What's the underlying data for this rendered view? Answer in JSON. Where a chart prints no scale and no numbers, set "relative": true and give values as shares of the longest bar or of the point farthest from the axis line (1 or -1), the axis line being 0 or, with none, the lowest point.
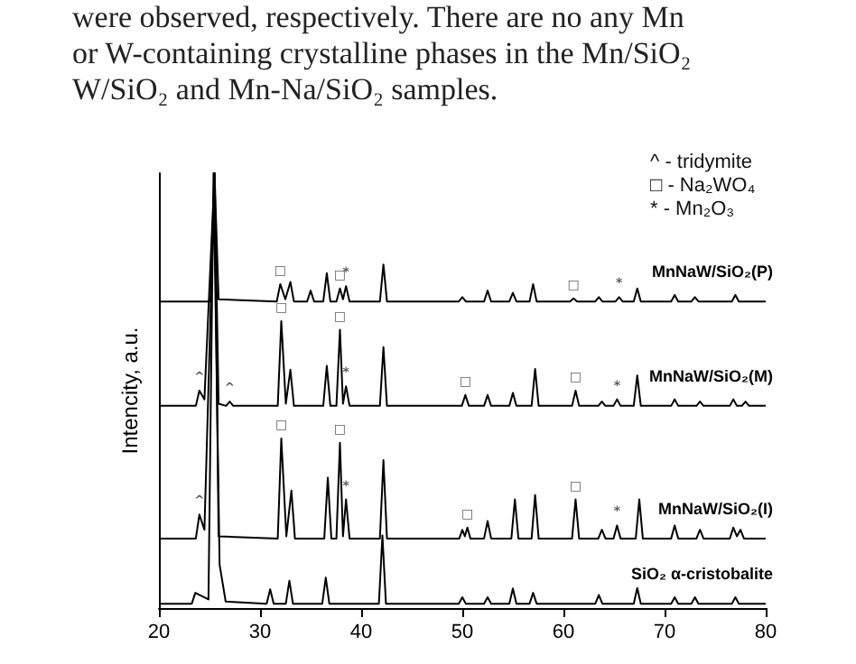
{
  "chart_data": {
    "type": "line",
    "relative": true,
    "ylabel": "Intencity, a.u.",
    "xlim": [
      20,
      80
    ],
    "xticks": [
      20,
      30,
      40,
      50,
      60,
      70,
      80
    ],
    "grid": false,
    "legend": false,
    "series": [
      {
        "name": "MnNaW/SiO₂(P)",
        "color": "#000000",
        "x": [
          20,
          25.1,
          25.5,
          25.9,
          31.65,
          32,
          32.5,
          33,
          33.35,
          34.65,
          35,
          35.35,
          36.25,
          36.6,
          36.95,
          37.55,
          37.9,
          38.2,
          38.5,
          38.85,
          41.85,
          42.2,
          42.55,
          49.65,
          50,
          50.35,
          52.15,
          52.5,
          52.85,
          54.65,
          55,
          55.35,
          56.65,
          57,
          57.35,
          60.65,
          61,
          61.35,
          63.15,
          63.5,
          63.85,
          65.15,
          65.5,
          65.85,
          66.95,
          67.3,
          67.65,
          70.65,
          71,
          71.35,
          72.65,
          73,
          73.35,
          76.65,
          77,
          77.35,
          80
        ],
        "values": [
          0.705,
          0.705,
          1,
          0.71,
          0.705,
          0.745,
          0.71,
          0.75,
          0.705,
          0.705,
          0.73,
          0.705,
          0.705,
          0.77,
          0.705,
          0.705,
          0.735,
          0.71,
          0.74,
          0.705,
          0.705,
          0.79,
          0.705,
          0.705,
          0.715,
          0.705,
          0.705,
          0.73,
          0.705,
          0.705,
          0.725,
          0.705,
          0.705,
          0.745,
          0.705,
          0.705,
          0.712,
          0.705,
          0.705,
          0.715,
          0.705,
          0.705,
          0.715,
          0.705,
          0.705,
          0.735,
          0.705,
          0.705,
          0.72,
          0.705,
          0.705,
          0.715,
          0.705,
          0.705,
          0.72,
          0.705,
          0.705
        ]
      },
      {
        "name": "MnNaW/SiO₂(M)",
        "color": "#000000",
        "x": [
          20,
          23.65,
          24,
          24.5,
          25.5,
          25.9,
          26.65,
          27,
          27.35,
          31.75,
          32.1,
          32.55,
          33,
          33.35,
          36.25,
          36.6,
          36.95,
          37.55,
          37.9,
          38.2,
          38.5,
          38.85,
          41.85,
          42.2,
          42.55,
          49.95,
          50.3,
          50.65,
          52.15,
          52.5,
          52.85,
          54.65,
          55,
          55.35,
          56.85,
          57.2,
          57.55,
          60.85,
          61.2,
          61.55,
          63.45,
          63.8,
          64.15,
          64.95,
          65.3,
          65.65,
          66.95,
          67.3,
          67.65,
          70.65,
          71,
          71.35,
          73.15,
          73.5,
          73.85,
          76.45,
          76.8,
          77.15,
          77.65,
          78,
          78.35,
          80
        ],
        "values": [
          0.465,
          0.465,
          0.5,
          0.48,
          1,
          0.47,
          0.465,
          0.475,
          0.465,
          0.465,
          0.66,
          0.47,
          0.548,
          0.465,
          0.465,
          0.557,
          0.465,
          0.465,
          0.64,
          0.47,
          0.51,
          0.465,
          0.465,
          0.6,
          0.465,
          0.465,
          0.49,
          0.465,
          0.465,
          0.49,
          0.465,
          0.465,
          0.495,
          0.465,
          0.465,
          0.55,
          0.465,
          0.465,
          0.5,
          0.465,
          0.465,
          0.475,
          0.465,
          0.465,
          0.48,
          0.465,
          0.465,
          0.535,
          0.465,
          0.465,
          0.48,
          0.465,
          0.465,
          0.475,
          0.465,
          0.465,
          0.48,
          0.465,
          0.465,
          0.475,
          0.465,
          0.465
        ]
      },
      {
        "name": "MnNaW/SiO₂(I)",
        "color": "#000000",
        "x": [
          20,
          23.65,
          24,
          24.5,
          25.5,
          25.9,
          31.75,
          32.1,
          32.6,
          33.1,
          33.45,
          36.35,
          36.7,
          37.05,
          37.55,
          37.9,
          38.2,
          38.5,
          38.85,
          41.85,
          42.2,
          42.55,
          49.7,
          50,
          50.25,
          50.5,
          50.8,
          52.15,
          52.5,
          52.85,
          54.85,
          55.2,
          55.55,
          56.85,
          57.2,
          57.55,
          60.85,
          61.2,
          61.55,
          63.45,
          63.8,
          64.15,
          64.95,
          65.3,
          65.65,
          67.15,
          67.5,
          67.85,
          70.65,
          71,
          71.35,
          73.15,
          73.5,
          73.85,
          76.45,
          76.8,
          77.15,
          77.5,
          77.85,
          80
        ],
        "values": [
          0.16,
          0.16,
          0.215,
          0.18,
          1,
          0.165,
          0.16,
          0.39,
          0.165,
          0.27,
          0.16,
          0.16,
          0.3,
          0.16,
          0.16,
          0.38,
          0.165,
          0.25,
          0.16,
          0.16,
          0.34,
          0.16,
          0.16,
          0.18,
          0.165,
          0.185,
          0.16,
          0.16,
          0.2,
          0.16,
          0.16,
          0.25,
          0.16,
          0.16,
          0.26,
          0.16,
          0.16,
          0.25,
          0.16,
          0.16,
          0.18,
          0.16,
          0.16,
          0.19,
          0.16,
          0.16,
          0.25,
          0.16,
          0.16,
          0.19,
          0.16,
          0.16,
          0.18,
          0.16,
          0.16,
          0.185,
          0.165,
          0.18,
          0.16,
          0.16
        ]
      },
      {
        "name": "SiO₂ α-cristobalite",
        "color": "#000000",
        "x": [
          20,
          23.25,
          23.6,
          24.9,
          25.4,
          26,
          26.6,
          30.65,
          31,
          31.35,
          32.55,
          32.9,
          33.25,
          36.15,
          36.5,
          36.85,
          41.75,
          42.1,
          42.45,
          49.65,
          50,
          50.35,
          52.15,
          52.5,
          52.85,
          54.65,
          55,
          55.35,
          56.65,
          57,
          57.35,
          63.15,
          63.5,
          63.85,
          66.95,
          67.3,
          67.65,
          70.65,
          71,
          71.35,
          72.65,
          73,
          73.35,
          76.65,
          77,
          77.35,
          80
        ],
        "values": [
          0.01,
          0.01,
          0.035,
          0.02,
          1,
          0.1,
          0.015,
          0.01,
          0.043,
          0.01,
          0.01,
          0.063,
          0.01,
          0.01,
          0.07,
          0.01,
          0.01,
          0.167,
          0.01,
          0.01,
          0.025,
          0.01,
          0.01,
          0.025,
          0.01,
          0.01,
          0.045,
          0.01,
          0.01,
          0.035,
          0.01,
          0.01,
          0.03,
          0.01,
          0.01,
          0.046,
          0.01,
          0.01,
          0.025,
          0.01,
          0.01,
          0.025,
          0.01,
          0.01,
          0.025,
          0.01,
          0.01
        ]
      }
    ],
    "annotations": [
      "were observed, respectively. There are no any Mn",
      "or W-containing crystalline phases in the Mn/SiO₂",
      "W/SiO₂ and Mn-Na/SiO₂ samples.",
      "^ - tridymite",
      "□ - Na₂WO₄",
      "* - Mn₂O₃",
      {
        "text": "□",
        "x": 32,
        "y": 0.745
      },
      {
        "text": "□",
        "x": 37.9,
        "y": 0.735
      },
      {
        "text": "*",
        "x": 38.5,
        "y": 0.74
      },
      {
        "text": "□",
        "x": 61,
        "y": 0.712
      },
      {
        "text": "*",
        "x": 65.5,
        "y": 0.715
      },
      {
        "text": "^",
        "x": 24,
        "y": 0.5
      },
      {
        "text": "^",
        "x": 27,
        "y": 0.475
      },
      {
        "text": "□",
        "x": 32.1,
        "y": 0.66
      },
      {
        "text": "□",
        "x": 37.9,
        "y": 0.64
      },
      {
        "text": "*",
        "x": 38.5,
        "y": 0.51
      },
      {
        "text": "□",
        "x": 50.3,
        "y": 0.49
      },
      {
        "text": "□",
        "x": 61.2,
        "y": 0.5
      },
      {
        "text": "*",
        "x": 65.3,
        "y": 0.48
      },
      {
        "text": "^",
        "x": 24,
        "y": 0.215
      },
      {
        "text": "□",
        "x": 32.1,
        "y": 0.39
      },
      {
        "text": "□",
        "x": 37.9,
        "y": 0.38
      },
      {
        "text": "*",
        "x": 38.5,
        "y": 0.25
      },
      {
        "text": "□",
        "x": 50.5,
        "y": 0.185
      },
      {
        "text": "□",
        "x": 61.2,
        "y": 0.25
      },
      {
        "text": "*",
        "x": 65.3,
        "y": 0.19
      }
    ]
  }
}
